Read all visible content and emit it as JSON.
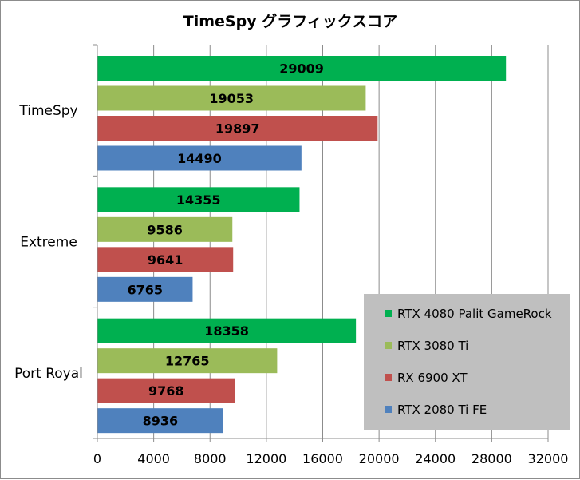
{
  "chart_data": {
    "type": "bar",
    "orientation": "horizontal",
    "title": "TimeSpy グラフィックスコア",
    "categories": [
      "TimeSpy",
      "Extreme",
      "Port Royal"
    ],
    "series": [
      {
        "name": "RTX 4080 Palit GameRock",
        "color": "#00b050",
        "values": [
          29009,
          14355,
          18358
        ]
      },
      {
        "name": "RTX 3080 Ti",
        "color": "#9bbb59",
        "values": [
          19053,
          9586,
          12765
        ]
      },
      {
        "name": "RX 6900 XT",
        "color": "#c0504d",
        "values": [
          19897,
          9641,
          9768
        ]
      },
      {
        "name": "RTX 2080 Ti FE",
        "color": "#4f81bd",
        "values": [
          14490,
          6765,
          8936
        ]
      }
    ],
    "xlim": [
      0,
      32000
    ],
    "xticks": [
      0,
      4000,
      8000,
      12000,
      16000,
      20000,
      24000,
      28000,
      32000
    ],
    "grid": "vertical",
    "legend": "bottom-right",
    "legend_background": "#bfbfbf",
    "data_labels": true
  }
}
